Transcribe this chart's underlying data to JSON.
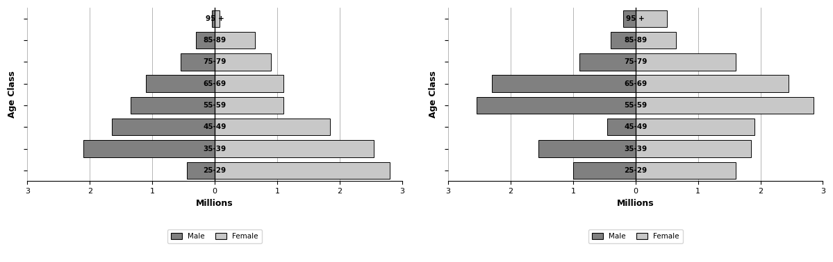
{
  "age_classes": [
    "25-29",
    "35-39",
    "45-49",
    "55-59",
    "65-69",
    "75-79",
    "85-89",
    "95 +"
  ],
  "chart1": {
    "male": [
      0.45,
      2.1,
      1.65,
      1.35,
      1.1,
      0.55,
      0.3,
      0.05
    ],
    "female": [
      2.8,
      2.55,
      1.85,
      1.1,
      1.1,
      0.9,
      0.65,
      0.08
    ]
  },
  "chart2": {
    "male": [
      1.0,
      1.55,
      0.45,
      2.55,
      2.3,
      0.9,
      0.4,
      0.2
    ],
    "female": [
      1.6,
      1.85,
      1.9,
      2.85,
      2.45,
      1.6,
      0.65,
      0.5
    ]
  },
  "male_color": "#808080",
  "female_color": "#c8c8c8",
  "bar_edge_color": "#000000",
  "bar_linewidth": 0.7,
  "xlim": 3.0,
  "xlabel": "Millions",
  "ylabel": "Age Class",
  "background_color": "#ffffff",
  "grid_color": "#999999",
  "label_fontsize": 7.5,
  "tick_fontsize": 8,
  "axis_label_fontsize": 9,
  "bar_height": 0.78
}
